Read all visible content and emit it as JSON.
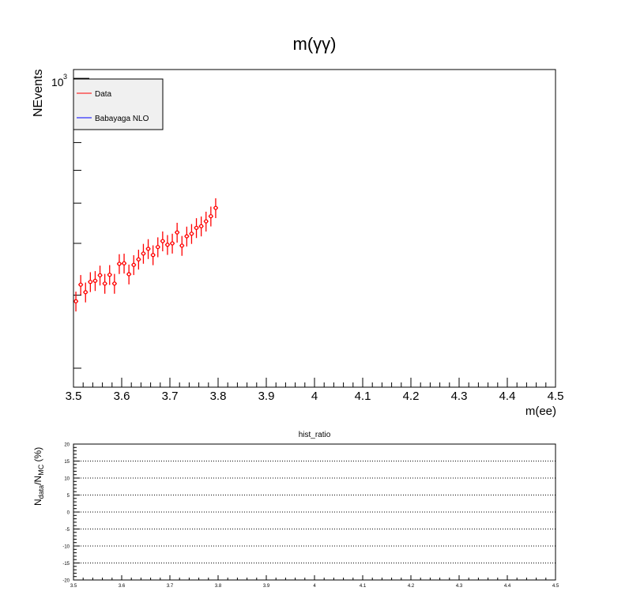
{
  "chart_data": [
    {
      "type": "scatter",
      "title": "m(γγ)",
      "xlabel": "m(ee)",
      "ylabel": "NEvents",
      "xlim": [
        3.5,
        4.5
      ],
      "ylog": true,
      "ylim": [
        180,
        1050
      ],
      "y_tick_label": "10",
      "y_tick_label_exp": "3",
      "x_ticks": [
        "3.5",
        "3.6",
        "3.7",
        "3.8",
        "3.9",
        "4",
        "4.1",
        "4.2",
        "4.3",
        "4.4",
        "4.5"
      ],
      "legend": {
        "placement": "top-left",
        "entries": [
          {
            "label": "Data",
            "color": "#ff0000"
          },
          {
            "label": "Babayaga NLO",
            "color": "#0000ff"
          }
        ]
      },
      "series": [
        {
          "name": "Data",
          "color": "#ff0000",
          "x": [
            3.505,
            3.515,
            3.525,
            3.535,
            3.545,
            3.555,
            3.565,
            3.575,
            3.585,
            3.595,
            3.605,
            3.615,
            3.625,
            3.635,
            3.645,
            3.655,
            3.665,
            3.675,
            3.685,
            3.695,
            3.705,
            3.715,
            3.725,
            3.735,
            3.745,
            3.755,
            3.765,
            3.775,
            3.785,
            3.795
          ],
          "y": [
            290,
            318,
            305,
            323,
            325,
            335,
            320,
            336,
            320,
            357,
            358,
            337,
            355,
            366,
            378,
            388,
            375,
            392,
            405,
            397,
            400,
            425,
            395,
            416,
            422,
            436,
            440,
            452,
            465,
            487
          ],
          "yerr_frac": 0.055
        }
      ]
    },
    {
      "type": "scatter",
      "title": "hist_ratio",
      "xlabel": "",
      "ylabel": "N_data/N_MC (%)",
      "xlim": [
        3.5,
        4.5
      ],
      "ylim": [
        -20,
        20
      ],
      "grid_y": true,
      "x_ticks": [
        "3.5",
        "3.6",
        "3.7",
        "3.8",
        "3.9",
        "4",
        "4.1",
        "4.2",
        "4.3",
        "4.4",
        "4.5"
      ],
      "y_ticks": [
        "-20",
        "-15",
        "-10",
        "-5",
        "0",
        "5",
        "10",
        "15",
        "20"
      ]
    }
  ]
}
